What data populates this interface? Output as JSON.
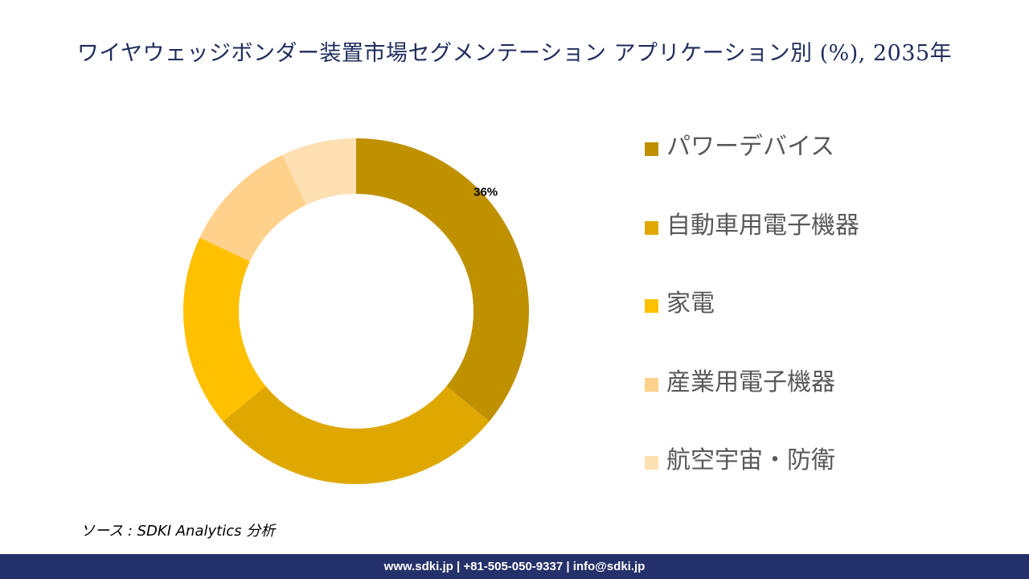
{
  "chart_data": {
    "type": "pie",
    "variant": "donut",
    "title": "ワイヤウェッジボンダー装置市場セグメンテーション アプリケーション別 (%), 2035年",
    "categories": [
      "パワーデバイス",
      "自動車用電子機器",
      "家電",
      "産業用電子機器",
      "航空宇宙・防衛"
    ],
    "values": [
      36,
      28,
      18,
      11,
      7
    ],
    "colors": [
      "#bf9000",
      "#dfa800",
      "#ffc000",
      "#ffd18a",
      "#ffe0b3"
    ],
    "data_labels": [
      "36%",
      "",
      "",
      "",
      ""
    ],
    "legend_position": "right"
  },
  "source": "ソース : SDKI Analytics 分析",
  "footer": {
    "contact": "www.sdki.jp | +81-505-050-9337 | info@sdki.jp"
  }
}
